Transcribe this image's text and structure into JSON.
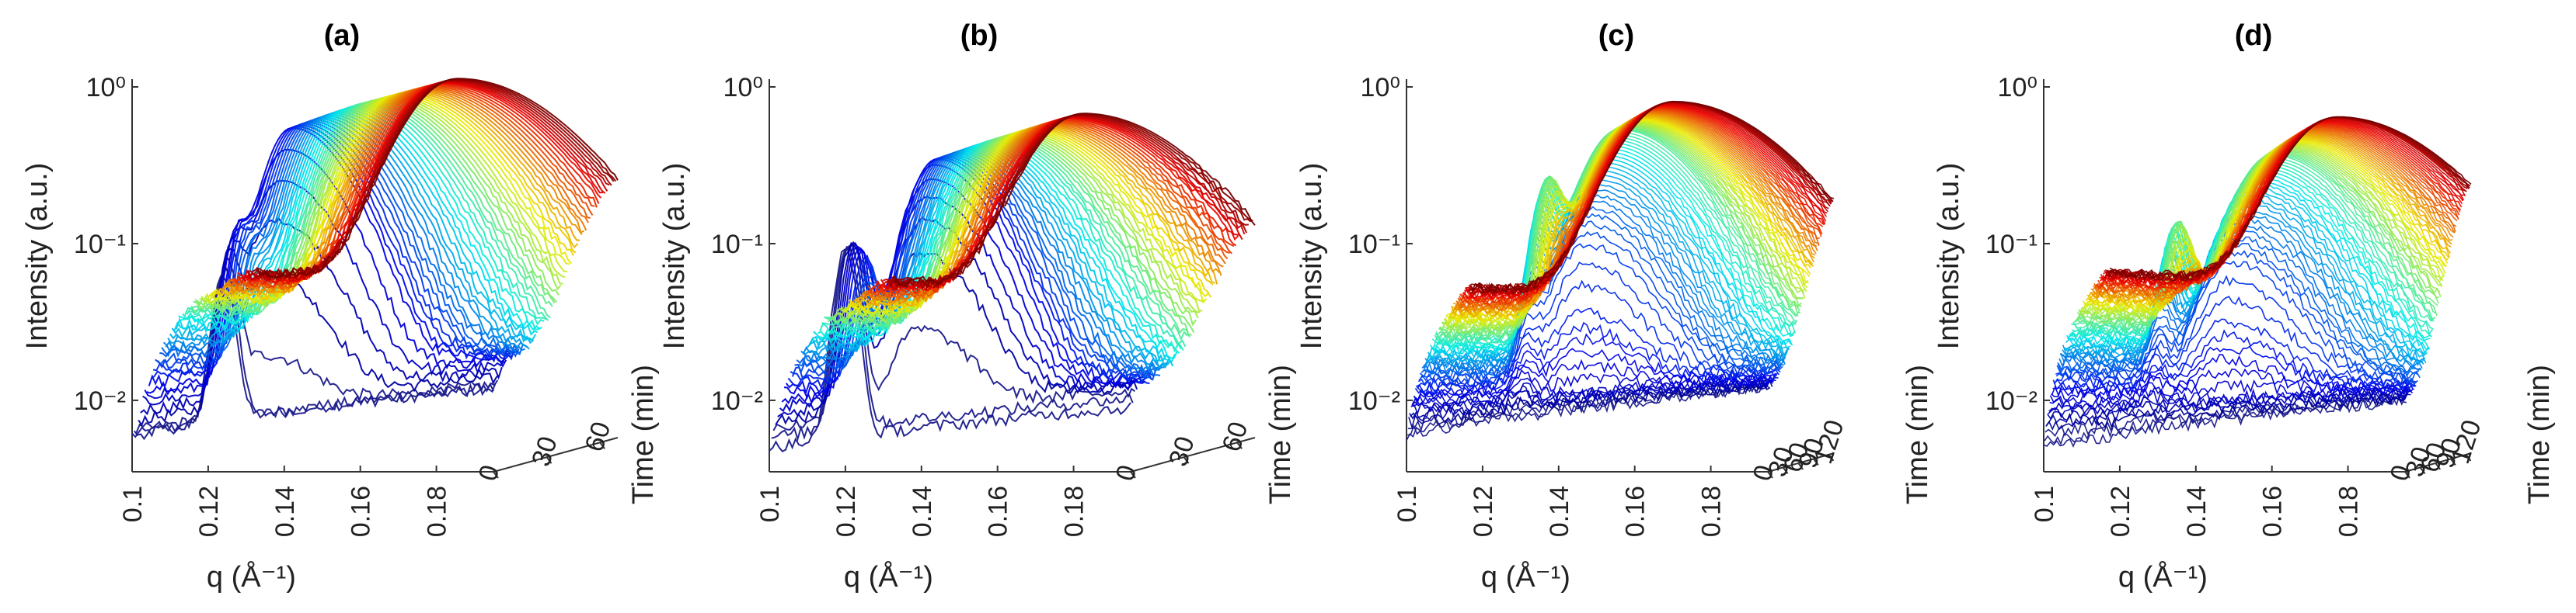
{
  "figure": {
    "time_axis_label": "Time (min)"
  },
  "chart_data": [
    {
      "type": "line",
      "panel_label": "(a)",
      "subtype": "waterfall-3d",
      "xlabel": "q (Å⁻¹)",
      "ylabel": "Intensity (a.u.)",
      "zlabel": "",
      "x_ticks": [
        "0.1",
        "0.12",
        "0.14",
        "0.16",
        "0.18"
      ],
      "xlim": [
        0.1,
        0.195
      ],
      "y_scale": "log",
      "y_ticks": [
        "10⁻²",
        "10⁻¹",
        "10⁰"
      ],
      "ylim": [
        0.0035,
        1.0
      ],
      "time_ticks": [
        "0",
        "30",
        "60"
      ],
      "time_range_min": [
        0,
        70
      ],
      "colormap": "jet (blue = early, red = late)",
      "n_curves": 60,
      "representative_profiles": [
        {
          "time_min": 0,
          "peak_q": null,
          "peak_intensity": 0.006,
          "baseline_low_q": 0.006,
          "baseline_high_q": 0.012
        },
        {
          "time_min": 2,
          "peak_q": 0.133,
          "peak_intensity": 0.035,
          "baseline_low_q": 0.006,
          "baseline_high_q": 0.012
        },
        {
          "time_min": 8,
          "peak_q": 0.138,
          "peak_intensity": 0.5,
          "shoulder_q": 0.124,
          "shoulder_intensity": 0.08,
          "baseline_high_q": 0.018
        },
        {
          "time_min": 30,
          "peak_q": 0.146,
          "peak_intensity": 0.6,
          "baseline_low_q": 0.03,
          "baseline_high_q": 0.02
        },
        {
          "time_min": 60,
          "peak_q": 0.153,
          "peak_intensity": 0.65,
          "baseline_low_q": 0.04,
          "baseline_high_q": 0.03
        }
      ]
    },
    {
      "type": "line",
      "panel_label": "(b)",
      "subtype": "waterfall-3d",
      "xlabel": "q (Å⁻¹)",
      "ylabel": "Intensity (a.u.)",
      "zlabel": "Time (min)",
      "x_ticks": [
        "0.1",
        "0.12",
        "0.14",
        "0.16",
        "0.18"
      ],
      "xlim": [
        0.1,
        0.195
      ],
      "y_scale": "log",
      "y_ticks": [
        "10⁻²",
        "10⁻¹",
        "10⁰"
      ],
      "ylim": [
        0.0035,
        1.0
      ],
      "time_ticks": [
        "0",
        "30",
        "60"
      ],
      "time_range_min": [
        0,
        70
      ],
      "colormap": "jet (blue = early, red = late)",
      "n_curves": 60,
      "representative_profiles": [
        {
          "time_min": 0,
          "peak_q": null,
          "peak_intensity": 0.005,
          "baseline_low_q": 0.005,
          "baseline_high_q": 0.009
        },
        {
          "time_min": 3,
          "peak_q": 0.138,
          "peak_intensity": 0.3,
          "shoulder_q": 0.12,
          "shoulder_intensity": 0.09,
          "baseline_high_q": 0.012
        },
        {
          "time_min": 30,
          "peak_q": 0.145,
          "peak_intensity": 0.35,
          "baseline_low_q": 0.025,
          "baseline_high_q": 0.015
        },
        {
          "time_min": 60,
          "peak_q": 0.15,
          "peak_intensity": 0.38,
          "baseline_low_q": 0.035,
          "baseline_high_q": 0.025
        }
      ]
    },
    {
      "type": "line",
      "panel_label": "(c)",
      "subtype": "waterfall-3d",
      "xlabel": "q (Å⁻¹)",
      "ylabel": "Intensity (a.u.)",
      "zlabel": "Time (min)",
      "x_ticks": [
        "0.1",
        "0.12",
        "0.14",
        "0.16",
        "0.18"
      ],
      "xlim": [
        0.1,
        0.195
      ],
      "y_scale": "log",
      "y_ticks": [
        "10⁻²",
        "10⁻¹",
        "10⁰"
      ],
      "ylim": [
        0.0035,
        1.0
      ],
      "time_ticks": [
        "0",
        "30",
        "60",
        "90",
        "120"
      ],
      "time_range_min": [
        0,
        130
      ],
      "colormap": "jet (blue = early, red = late)",
      "n_curves": 90,
      "representative_profiles": [
        {
          "time_min": 0,
          "peak_q": null,
          "peak_intensity": 0.006,
          "baseline_low_q": 0.006,
          "baseline_high_q": 0.012
        },
        {
          "time_min": 20,
          "peak_q": 0.143,
          "peak_intensity": 0.03,
          "baseline_high_q": 0.014
        },
        {
          "time_min": 60,
          "peak_q": 0.148,
          "peak_intensity": 0.45,
          "shoulder_q": 0.129,
          "shoulder_intensity": 0.18,
          "baseline_high_q": 0.022
        },
        {
          "time_min": 120,
          "peak_q": 0.153,
          "peak_intensity": 0.58,
          "baseline_low_q": 0.04,
          "baseline_high_q": 0.03
        }
      ]
    },
    {
      "type": "line",
      "panel_label": "(d)",
      "subtype": "waterfall-3d",
      "xlabel": "q (Å⁻¹)",
      "ylabel": "Intensity (a.u.)",
      "zlabel": "Time (min)",
      "x_ticks": [
        "0.1",
        "0.12",
        "0.14",
        "0.16",
        "0.18"
      ],
      "xlim": [
        0.1,
        0.195
      ],
      "y_scale": "log",
      "y_ticks": [
        "10⁻²",
        "10⁻¹",
        "10⁰"
      ],
      "ylim": [
        0.0035,
        1.0
      ],
      "time_ticks": [
        "0",
        "30",
        "60",
        "90",
        "120"
      ],
      "time_range_min": [
        0,
        130
      ],
      "colormap": "jet (blue = early, red = late)",
      "n_curves": 90,
      "representative_profiles": [
        {
          "time_min": 0,
          "peak_q": null,
          "peak_intensity": 0.005,
          "baseline_low_q": 0.005,
          "baseline_high_q": 0.01
        },
        {
          "time_min": 20,
          "peak_q": 0.145,
          "peak_intensity": 0.025,
          "baseline_high_q": 0.012
        },
        {
          "time_min": 60,
          "peak_q": 0.152,
          "peak_intensity": 0.3,
          "shoulder_q": 0.127,
          "shoulder_intensity": 0.09,
          "baseline_high_q": 0.02
        },
        {
          "time_min": 120,
          "peak_q": 0.16,
          "peak_intensity": 0.45,
          "baseline_low_q": 0.05,
          "baseline_high_q": 0.035
        }
      ]
    }
  ]
}
